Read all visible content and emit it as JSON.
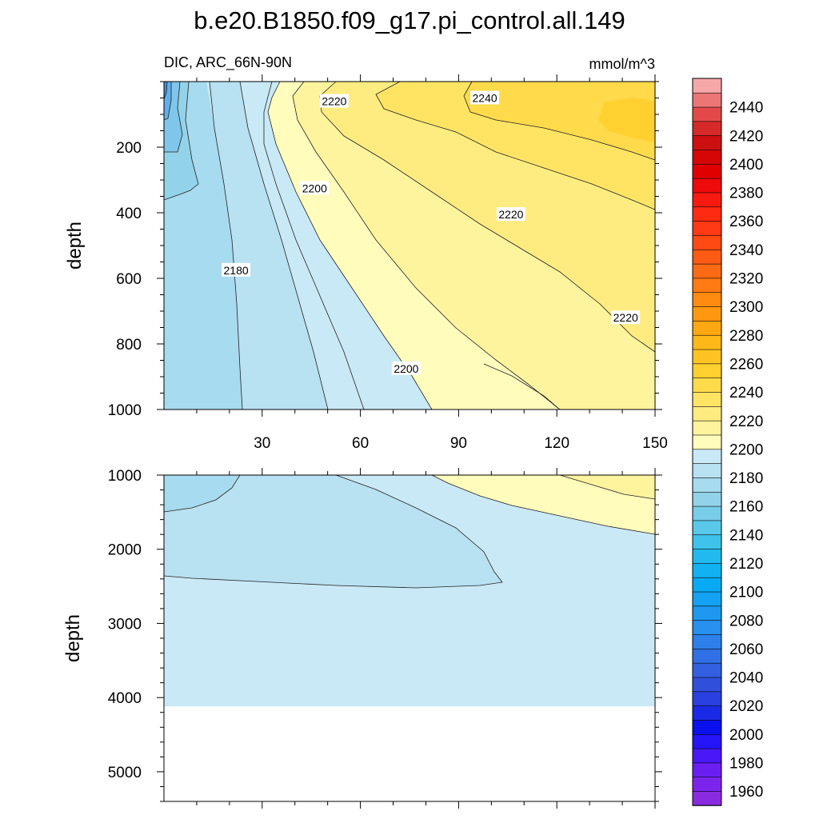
{
  "chart_data": {
    "type": "filled-contour",
    "title": "b.e20.B1850.f09_g17.pi_control.all.149",
    "left_subtitle": "DIC, ARC_66N-90N",
    "right_subtitle": "mmol/m^3",
    "variable": "DIC",
    "region": "ARC_66N-90N",
    "units": "mmol/m^3",
    "x_range": [
      0,
      150
    ],
    "x_ticks": [
      30,
      60,
      90,
      120,
      150
    ],
    "panels": [
      {
        "name": "upper",
        "ylabel": "depth",
        "y_range": [
          0,
          1000
        ],
        "y_ticks": [
          200,
          400,
          600,
          800,
          1000
        ],
        "contour_labels": [
          {
            "text": "2220",
            "x": 52,
            "depth": 60
          },
          {
            "text": "2240",
            "x": 98,
            "depth": 50
          },
          {
            "text": "2200",
            "x": 46,
            "depth": 325
          },
          {
            "text": "2220",
            "x": 106,
            "depth": 405
          },
          {
            "text": "2180",
            "x": 22,
            "depth": 575
          },
          {
            "text": "2220",
            "x": 141,
            "depth": 720
          },
          {
            "text": "2200",
            "x": 74,
            "depth": 875
          }
        ]
      },
      {
        "name": "lower",
        "ylabel": "depth",
        "y_range": [
          1000,
          5400
        ],
        "y_ticks": [
          1000,
          2000,
          3000,
          4000,
          5000
        ],
        "bottom_depth": 4120
      }
    ],
    "colorbar": {
      "min": 1950,
      "max": 2460,
      "step": 10,
      "labels": [
        "1960",
        "1980",
        "2000",
        "2020",
        "2040",
        "2060",
        "2080",
        "2100",
        "2120",
        "2140",
        "2160",
        "2180",
        "2200",
        "2220",
        "2240",
        "2260",
        "2280",
        "2300",
        "2320",
        "2340",
        "2360",
        "2380",
        "2400",
        "2420",
        "2440"
      ]
    }
  }
}
